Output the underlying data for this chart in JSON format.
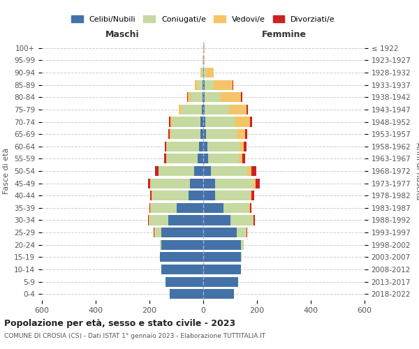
{
  "age_groups": [
    "0-4",
    "5-9",
    "10-14",
    "15-19",
    "20-24",
    "25-29",
    "30-34",
    "35-39",
    "40-44",
    "45-49",
    "50-54",
    "55-59",
    "60-64",
    "65-69",
    "70-74",
    "75-79",
    "80-84",
    "85-89",
    "90-94",
    "95-99",
    "100+"
  ],
  "birth_years": [
    "2018-2022",
    "2013-2017",
    "2008-2012",
    "2003-2007",
    "1998-2002",
    "1993-1997",
    "1988-1992",
    "1983-1987",
    "1978-1982",
    "1973-1977",
    "1968-1972",
    "1963-1967",
    "1958-1962",
    "1953-1957",
    "1948-1952",
    "1943-1947",
    "1938-1942",
    "1933-1937",
    "1928-1932",
    "1923-1927",
    "≤ 1922"
  ],
  "maschi": {
    "celibi": [
      125,
      140,
      155,
      160,
      155,
      155,
      130,
      100,
      55,
      50,
      35,
      20,
      15,
      10,
      10,
      5,
      3,
      2,
      0,
      0,
      0
    ],
    "coniugati": [
      0,
      0,
      0,
      2,
      5,
      25,
      70,
      95,
      135,
      145,
      130,
      115,
      120,
      110,
      105,
      75,
      45,
      20,
      5,
      2,
      1
    ],
    "vedovi": [
      0,
      0,
      0,
      0,
      0,
      2,
      2,
      2,
      2,
      2,
      2,
      2,
      3,
      4,
      8,
      10,
      10,
      10,
      5,
      0,
      0
    ],
    "divorziati": [
      0,
      0,
      0,
      0,
      0,
      2,
      2,
      3,
      5,
      8,
      12,
      8,
      5,
      5,
      5,
      2,
      2,
      0,
      0,
      0,
      0
    ]
  },
  "femmine": {
    "nubili": [
      115,
      130,
      140,
      140,
      140,
      125,
      100,
      75,
      45,
      45,
      28,
      18,
      15,
      10,
      8,
      6,
      5,
      4,
      2,
      0,
      0
    ],
    "coniugate": [
      0,
      0,
      0,
      2,
      10,
      35,
      85,
      95,
      130,
      140,
      135,
      115,
      120,
      115,
      110,
      90,
      60,
      35,
      8,
      2,
      2
    ],
    "vedove": [
      0,
      0,
      0,
      0,
      0,
      2,
      3,
      4,
      5,
      10,
      15,
      12,
      15,
      30,
      55,
      65,
      75,
      70,
      30,
      4,
      2
    ],
    "divorziate": [
      0,
      0,
      0,
      0,
      0,
      2,
      3,
      5,
      10,
      15,
      20,
      12,
      12,
      8,
      8,
      5,
      5,
      2,
      0,
      0,
      0
    ]
  },
  "colors": {
    "celibi_nubili": "#4472A8",
    "coniugati": "#C5D9A0",
    "vedovi": "#F5C469",
    "divorziati": "#CC2222"
  },
  "xlim": 600,
  "title_main": "Popolazione per età, sesso e stato civile - 2023",
  "title_sub": "COMUNE DI CROSIA (CS) - Dati ISTAT 1° gennaio 2023 - Elaborazione TUTTITALIA.IT",
  "ylabel_left": "Fasce di età",
  "ylabel_right": "Anni di nascita",
  "xlabel_left": "Maschi",
  "xlabel_right": "Femmine",
  "background_color": "#ffffff",
  "grid_color": "#cccccc"
}
